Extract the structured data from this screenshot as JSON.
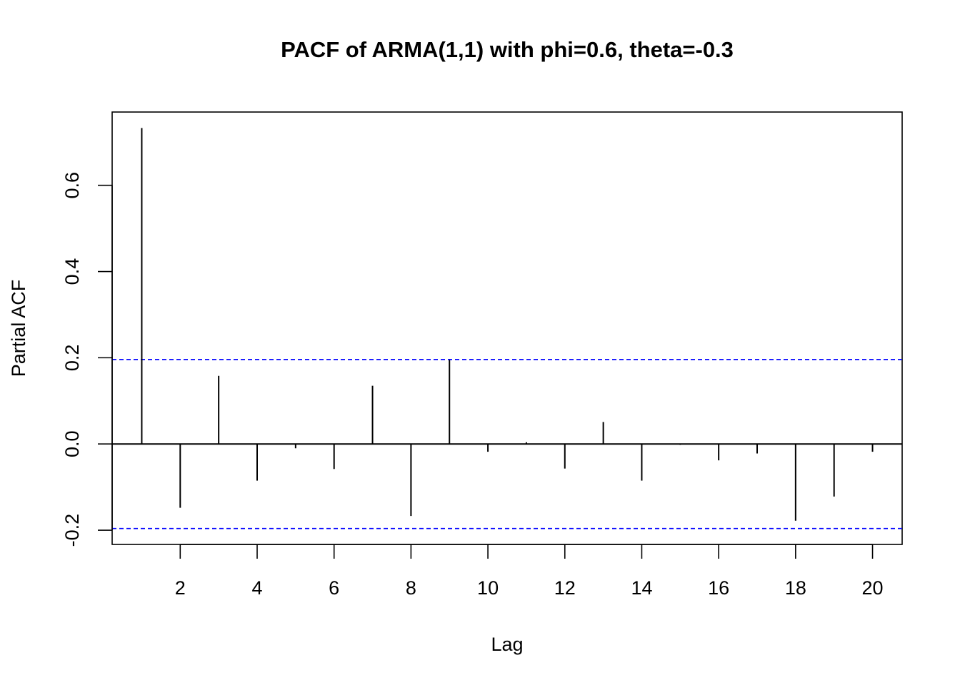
{
  "chart_data": {
    "type": "bar",
    "title": "PACF of ARMA(1,1) with phi=0.6, theta=-0.3",
    "xlabel": "Lag",
    "ylabel": "Partial ACF",
    "x": [
      1,
      2,
      3,
      4,
      5,
      6,
      7,
      8,
      9,
      10,
      11,
      12,
      13,
      14,
      15,
      16,
      17,
      18,
      19,
      20
    ],
    "values": [
      0.733,
      -0.148,
      0.158,
      -0.085,
      -0.01,
      -0.058,
      0.135,
      -0.167,
      0.195,
      -0.018,
      0.004,
      -0.057,
      0.051,
      -0.085,
      -0.002,
      -0.038,
      -0.022,
      -0.178,
      -0.122,
      -0.018
    ],
    "xlim": [
      0.23,
      20.77
    ],
    "ylim": [
      -0.233,
      0.77
    ],
    "xticks": [
      2,
      4,
      6,
      8,
      10,
      12,
      14,
      16,
      18,
      20
    ],
    "yticks": [
      -0.2,
      0.0,
      0.2,
      0.4,
      0.6
    ],
    "ytick_labels": [
      "-0.2",
      "0.0",
      "0.2",
      "0.4",
      "0.6"
    ],
    "confidence_bound": 0.196,
    "zero_line": true,
    "grid": false,
    "colors": {
      "spike": "#000000",
      "confidence": "#0000ff",
      "frame": "#000000"
    }
  }
}
